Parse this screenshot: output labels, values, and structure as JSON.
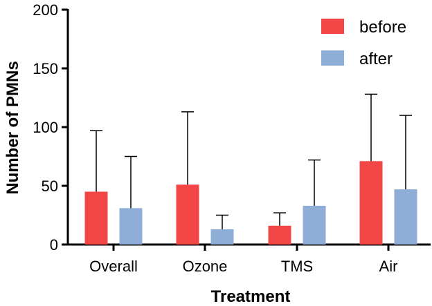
{
  "chart_data": {
    "type": "bar",
    "title": "",
    "xlabel": "Treatment",
    "ylabel": "Number of PMNs",
    "ylim": [
      0,
      200
    ],
    "yticks": [
      0,
      50,
      100,
      150,
      200
    ],
    "categories": [
      "Overall",
      "Ozone",
      "TMS",
      "Air"
    ],
    "series": [
      {
        "name": "before",
        "color": "#f24646",
        "values": [
          45,
          51,
          16,
          71
        ],
        "error_upper": [
          97,
          113,
          27,
          128
        ]
      },
      {
        "name": "after",
        "color": "#8eaed8",
        "values": [
          31,
          13,
          33,
          47
        ],
        "error_upper": [
          75,
          25,
          72,
          110
        ]
      }
    ],
    "legend_position": "top-right",
    "grid": false
  }
}
